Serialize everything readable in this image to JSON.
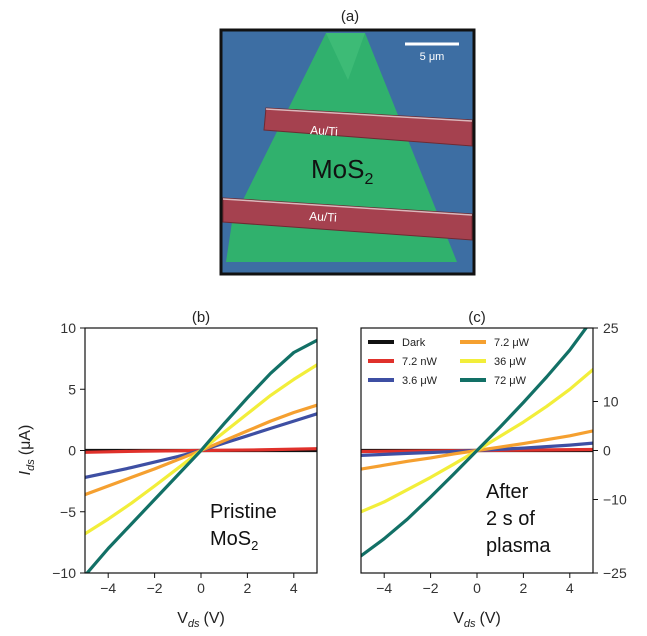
{
  "panels": {
    "a": {
      "label": "(a)",
      "scale_bar": "5 μm",
      "electrode_labels": [
        "Au/Ti",
        "Au/Ti"
      ],
      "material": "MoS",
      "material_sub": "2",
      "colors": {
        "substrate": "#3d6ea3",
        "flake": "#2fb46a",
        "electrode": "#a5414f"
      }
    }
  },
  "chart_data": [
    {
      "panel": "(b)",
      "type": "line",
      "title": "",
      "xlabel": "V",
      "xlabel_sub": "ds",
      "xlabel_unit": "(V)",
      "ylabel": "I",
      "ylabel_sub": "ds",
      "ylabel_unit": "(μA)",
      "xlim": [
        -5,
        5
      ],
      "ylim": [
        -10,
        10
      ],
      "xticks": [
        -4,
        -2,
        0,
        2,
        4
      ],
      "yticks": [
        -10,
        -5,
        0,
        5,
        10
      ],
      "annotation": [
        "Pristine",
        "MoS"
      ],
      "annotation_sub": "2",
      "grid": false,
      "series": [
        {
          "name": "Dark",
          "color": "#111111",
          "x": [
            -5,
            5
          ],
          "y": [
            0,
            0
          ]
        },
        {
          "name": "7.2 nW",
          "color": "#e0312b",
          "x": [
            -5,
            -2.5,
            0,
            2.5,
            5
          ],
          "y": [
            -0.15,
            -0.05,
            0,
            0.05,
            0.15
          ]
        },
        {
          "name": "3.6 μW",
          "color": "#3e4fa3",
          "x": [
            -5,
            -4,
            -3,
            -2,
            -1,
            0,
            1,
            2,
            3,
            4,
            5
          ],
          "y": [
            -2.2,
            -1.8,
            -1.4,
            -0.95,
            -0.5,
            0,
            0.6,
            1.2,
            1.8,
            2.4,
            3.0
          ]
        },
        {
          "name": "7.2 μW",
          "color": "#f5a030",
          "x": [
            -5,
            -4,
            -3,
            -2,
            -1,
            0,
            1,
            2,
            3,
            4,
            5
          ],
          "y": [
            -3.6,
            -2.9,
            -2.2,
            -1.5,
            -0.75,
            0,
            0.8,
            1.6,
            2.4,
            3.1,
            3.7
          ]
        },
        {
          "name": "36 μW",
          "color": "#f2ee3a",
          "x": [
            -5,
            -4,
            -3,
            -2,
            -1,
            0,
            1,
            2,
            3,
            4,
            5
          ],
          "y": [
            -6.8,
            -5.6,
            -4.3,
            -2.9,
            -1.45,
            0,
            1.5,
            3.0,
            4.5,
            5.8,
            7.0
          ]
        },
        {
          "name": "72 μW",
          "color": "#127066",
          "x": [
            -5,
            -4,
            -3,
            -2,
            -1,
            0,
            1,
            2,
            3,
            4,
            5
          ],
          "y": [
            -10.2,
            -8.0,
            -6.0,
            -4.0,
            -2.0,
            0,
            2.2,
            4.3,
            6.3,
            8.0,
            9.0
          ]
        }
      ]
    },
    {
      "panel": "(c)",
      "type": "line",
      "title": "",
      "xlabel": "V",
      "xlabel_sub": "ds",
      "xlabel_unit": "(V)",
      "xlim": [
        -5,
        5
      ],
      "ylim": [
        -25,
        25
      ],
      "xticks": [
        -4,
        -2,
        0,
        2,
        4
      ],
      "yticks": [
        -25,
        -10,
        0,
        10,
        25
      ],
      "yaxis_position": "right",
      "annotation": [
        "After",
        "2 s of",
        "plasma"
      ],
      "legend_position": "top-left",
      "grid": false,
      "series": [
        {
          "name": "Dark",
          "color": "#111111",
          "x": [
            -5,
            5
          ],
          "y": [
            0,
            0
          ]
        },
        {
          "name": "7.2 nW",
          "color": "#e0312b",
          "x": [
            -5,
            -2.5,
            0,
            2.5,
            5
          ],
          "y": [
            -0.2,
            -0.1,
            0,
            0.1,
            0.2
          ]
        },
        {
          "name": "3.6 μW",
          "color": "#3e4fa3",
          "x": [
            -5,
            -4,
            -3,
            -2,
            -1,
            0,
            1,
            2,
            3,
            4,
            5
          ],
          "y": [
            -1.0,
            -0.8,
            -0.6,
            -0.4,
            -0.2,
            0,
            0.25,
            0.5,
            0.8,
            1.1,
            1.5
          ]
        },
        {
          "name": "7.2 μW",
          "color": "#f5a030",
          "x": [
            -5,
            -4,
            -3,
            -2,
            -1,
            0,
            1,
            2,
            3,
            4,
            5
          ],
          "y": [
            -3.8,
            -3.0,
            -2.2,
            -1.5,
            -0.7,
            0,
            0.7,
            1.4,
            2.2,
            3.0,
            4.0
          ]
        },
        {
          "name": "36 μW",
          "color": "#f2ee3a",
          "x": [
            -5,
            -4,
            -3,
            -2,
            -1,
            0,
            1,
            2,
            3,
            4,
            5
          ],
          "y": [
            -12.5,
            -10.5,
            -8.0,
            -5.5,
            -2.8,
            0,
            2.9,
            5.8,
            9.0,
            12.5,
            16.5
          ]
        },
        {
          "name": "72 μW",
          "color": "#127066",
          "x": [
            -5,
            -4,
            -3,
            -2,
            -1,
            0,
            1,
            2,
            3,
            4,
            4.7
          ],
          "y": [
            -21.5,
            -18.0,
            -14.0,
            -9.5,
            -4.8,
            0,
            4.8,
            9.8,
            15.0,
            20.5,
            25.0
          ]
        }
      ]
    }
  ]
}
